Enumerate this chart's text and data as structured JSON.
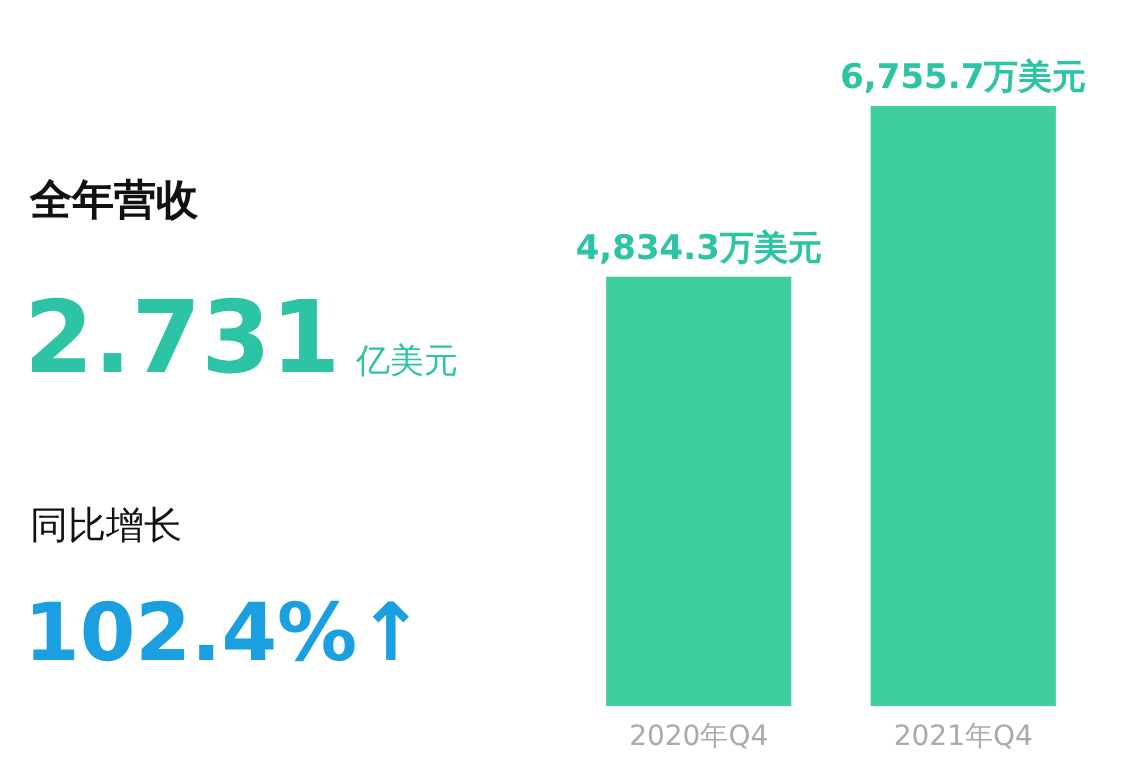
{
  "chart_data": [
    {
      "type": "other",
      "annotations": [
        "全年营收",
        "2.731",
        "亿美元",
        "同比增长",
        "102.4%↑"
      ]
    },
    {
      "type": "bar",
      "categories": [
        "2020年Q4",
        "2021年Q4"
      ],
      "values": [
        4834.3,
        6755.7
      ],
      "color": "#3fcf9c",
      "value_labels": [
        "4,834.3万美元",
        "6,755.7万美元"
      ],
      "grid": false
    }
  ]
}
